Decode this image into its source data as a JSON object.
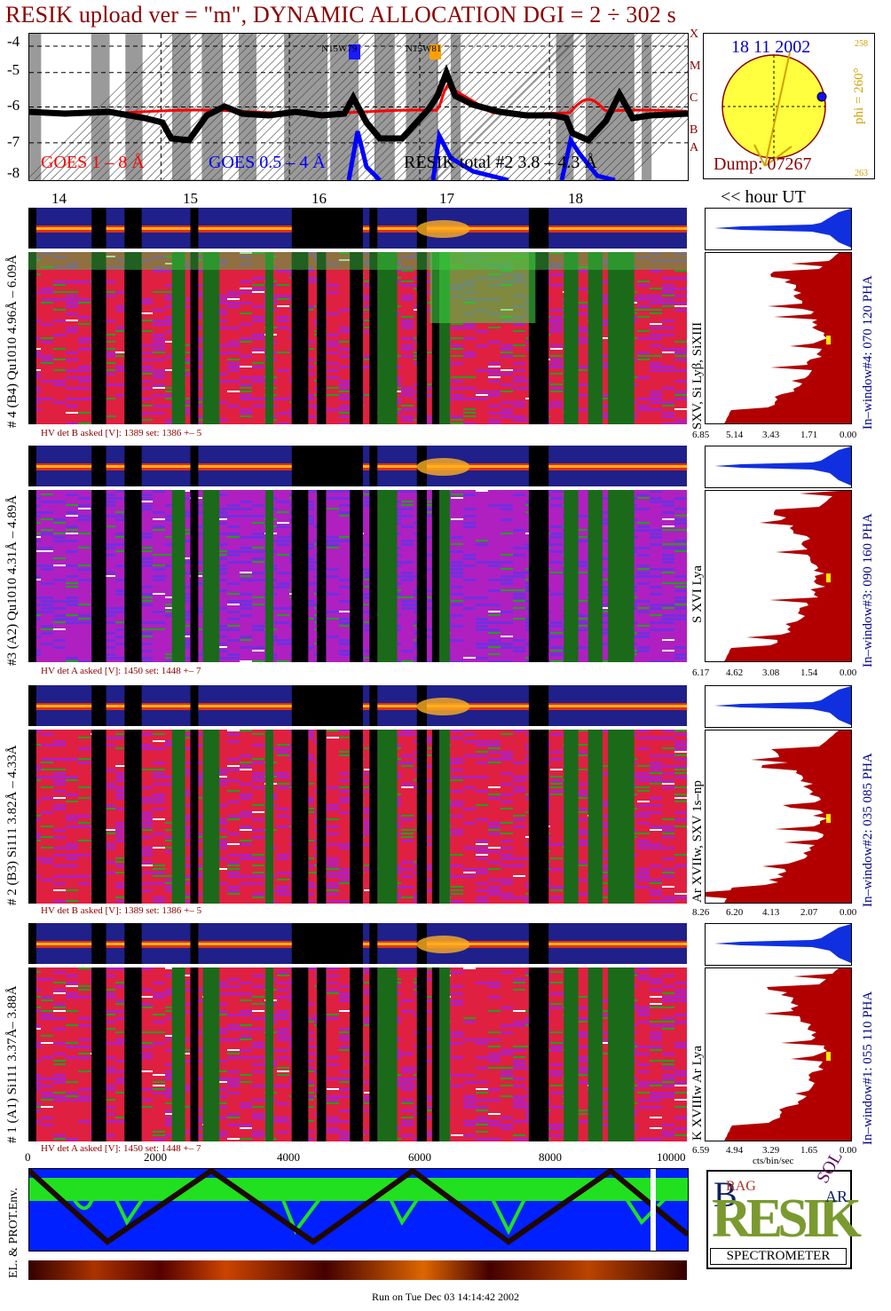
{
  "title": "RESIK upload ver = \"m\", DYNAMIC ALLOCATION  DGI =   2 ÷ 302 s",
  "goes": {
    "yticks": [
      "-4",
      "-5",
      "-6",
      "-7",
      "-8"
    ],
    "classes": [
      "X",
      "M",
      "C",
      "B",
      "A"
    ],
    "legend_goes18": "GOES 1 – 8 Å",
    "legend_goes054": "GOES 0.5 – 4 Å",
    "legend_resik": "RESIK total #2  3.8 – 4.3 Å",
    "marker1": "N15W79",
    "marker2": "N15W81",
    "hour_ticks": [
      "14",
      "15",
      "16",
      "17",
      "18"
    ],
    "hour_label": "<< hour UT"
  },
  "sun": {
    "date": "18 11 2002",
    "phi": "phi = 260°",
    "phi_top": "258",
    "phi_bottom": "263",
    "dump": "Dump: 07267"
  },
  "panels": [
    {
      "label": "# 4 (B4) Qu1010 4.96Å – 6.09Å",
      "hv": "HV det B asked [V]:  1389 set:  1386 +–    5",
      "spec_label": "SXV, Si Lyβ, SiXIII",
      "window": "In–window#4:  070 120 PHA",
      "xticks": [
        "6.85",
        "5.14",
        "3.43",
        "1.71",
        "0.00"
      ]
    },
    {
      "label": "#3 (A2) Qu1010  4.31Å – 4.89Å",
      "hv": "HV det A asked [V]:  1450 set:  1448 +–    7",
      "spec_label": "S XVI Lya",
      "window": "In–window#3:  090 160 PHA",
      "xticks": [
        "6.17",
        "4.62",
        "3.08",
        "1.54",
        "0.00"
      ]
    },
    {
      "label": "# 2 (B3) Si111  3.82Å – 4.33Å",
      "hv": "HV det B asked [V]:  1389 set:  1386 +–    5",
      "spec_label": "Ar XVIIw,  SXV 1s–np",
      "window": "In–window#2:  035 085 PHA",
      "xticks": [
        "8.26",
        "6.20",
        "4.13",
        "2.07",
        "0.00"
      ]
    },
    {
      "label": "# 1 (A1) Si111  3.37Å– 3.88Å",
      "hv": "HV det A asked [V]:  1450 set:  1448 +–    7",
      "spec_label": "K XVIIIw  Ar Lya",
      "window": "In–window#1:  055 110 PHA",
      "xticks": [
        "6.59",
        "4.94",
        "3.29",
        "1.65",
        "0.00"
      ]
    }
  ],
  "unit_label": "cts/bin/sec",
  "bottom_axis": [
    "0",
    "2000",
    "4000",
    "6000",
    "8000",
    "10000"
  ],
  "env_label": "EL. & PROT.Env.",
  "logo": {
    "brand": "RESIK",
    "text": "SPECTROMETER",
    "b": "B",
    "rag": "RAG",
    "sol": "SOL",
    "ar": "AR"
  },
  "run_line": "Run on Tue Dec 03 14:14:42 2002",
  "colors": {
    "title": "#8b0000",
    "goes18": "#ff0000",
    "goes054": "#0000ff",
    "spectrum": "#b20000",
    "blue_spec": "#1030e0",
    "sun": "#ffff40"
  }
}
